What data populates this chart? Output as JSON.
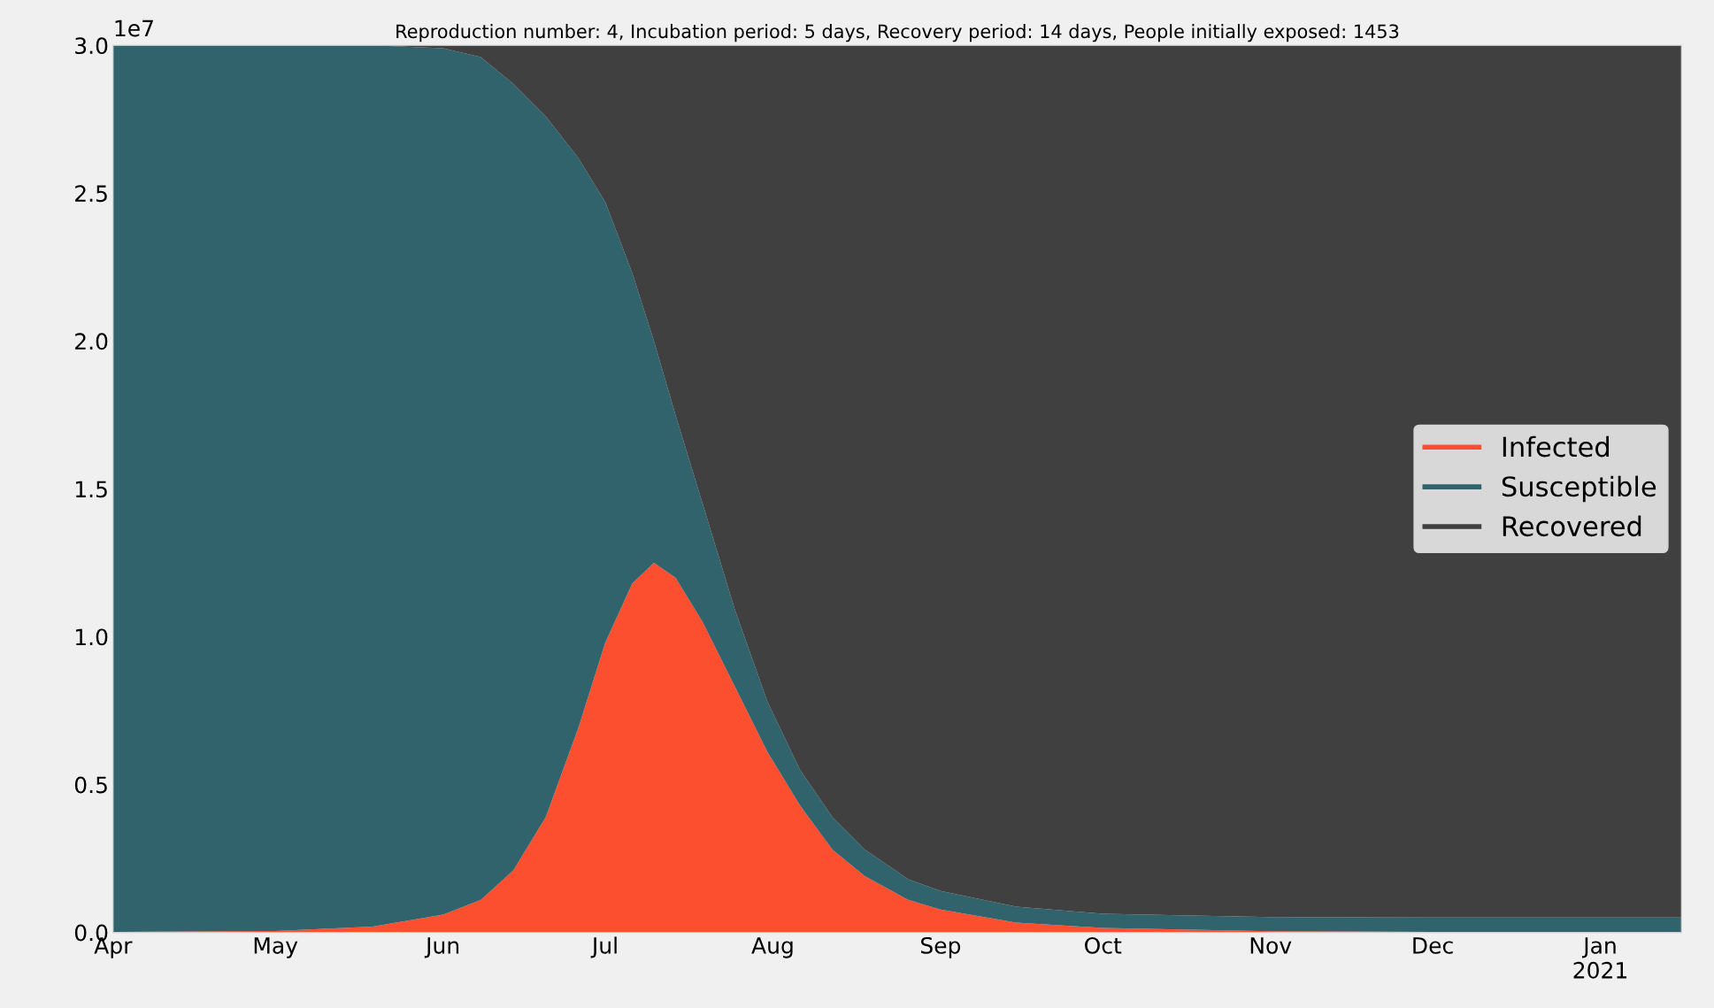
{
  "chart_data": {
    "type": "area",
    "stacked": true,
    "title": "Reproduction number: 4, Incubation period: 5 days, Recovery period: 14 days, People initially exposed: 1453",
    "annotations": [
      "1e7"
    ],
    "x": [
      "2020-04-01",
      "2020-05-01",
      "2020-05-19",
      "2020-06-01",
      "2020-06-08",
      "2020-06-14",
      "2020-06-20",
      "2020-06-26",
      "2020-07-01",
      "2020-07-06",
      "2020-07-10",
      "2020-07-14",
      "2020-07-19",
      "2020-07-25",
      "2020-07-31",
      "2020-08-06",
      "2020-08-12",
      "2020-08-18",
      "2020-08-26",
      "2020-09-01",
      "2020-09-15",
      "2020-10-01",
      "2020-11-01",
      "2020-12-01",
      "2021-01-01",
      "2021-01-16"
    ],
    "series": [
      {
        "name": "Infected",
        "color": "#fc4f30",
        "values": [
          0.002,
          0.005,
          0.02,
          0.06,
          0.11,
          0.21,
          0.39,
          0.69,
          0.98,
          1.18,
          1.25,
          1.2,
          1.05,
          0.83,
          0.61,
          0.43,
          0.28,
          0.19,
          0.11,
          0.077,
          0.033,
          0.015,
          0.004,
          0.002,
          0.001,
          0.001
        ]
      },
      {
        "name": "Susceptible",
        "color": "#30636b",
        "values": [
          2.998,
          2.995,
          2.98,
          2.93,
          2.85,
          2.66,
          2.37,
          1.93,
          1.49,
          1.05,
          0.75,
          0.55,
          0.4,
          0.26,
          0.17,
          0.12,
          0.11,
          0.09,
          0.07,
          0.063,
          0.054,
          0.048,
          0.048,
          0.048,
          0.049,
          0.049
        ]
      },
      {
        "name": "Recovered",
        "color": "#404040",
        "values": [
          0,
          0,
          0,
          0.01,
          0.04,
          0.13,
          0.24,
          0.38,
          0.53,
          0.77,
          1.0,
          1.25,
          1.55,
          1.91,
          2.22,
          2.45,
          2.61,
          2.72,
          2.82,
          2.86,
          2.913,
          2.937,
          2.948,
          2.95,
          2.95,
          2.95
        ]
      }
    ],
    "xlim": [
      "2020-04-01",
      "2021-01-16"
    ],
    "xticks": [
      {
        "value": "2020-04-01",
        "label": "Apr"
      },
      {
        "value": "2020-05-01",
        "label": "May"
      },
      {
        "value": "2020-06-01",
        "label": "Jun"
      },
      {
        "value": "2020-07-01",
        "label": "Jul"
      },
      {
        "value": "2020-08-01",
        "label": "Aug"
      },
      {
        "value": "2020-09-01",
        "label": "Sep"
      },
      {
        "value": "2020-10-01",
        "label": "Oct"
      },
      {
        "value": "2020-11-01",
        "label": "Nov"
      },
      {
        "value": "2020-12-01",
        "label": "Dec"
      },
      {
        "value": "2021-01-01",
        "label": "Jan\n2021"
      }
    ],
    "ylim": [
      0,
      3.0
    ],
    "yticks": [
      {
        "value": 0,
        "label": "0.0"
      },
      0.5,
      {
        "value": 1,
        "label": "1.0"
      },
      1.5,
      {
        "value": 2,
        "label": "2.0"
      },
      2.5,
      {
        "value": 3,
        "label": "3.0"
      }
    ],
    "grid": false,
    "legend": "right"
  }
}
